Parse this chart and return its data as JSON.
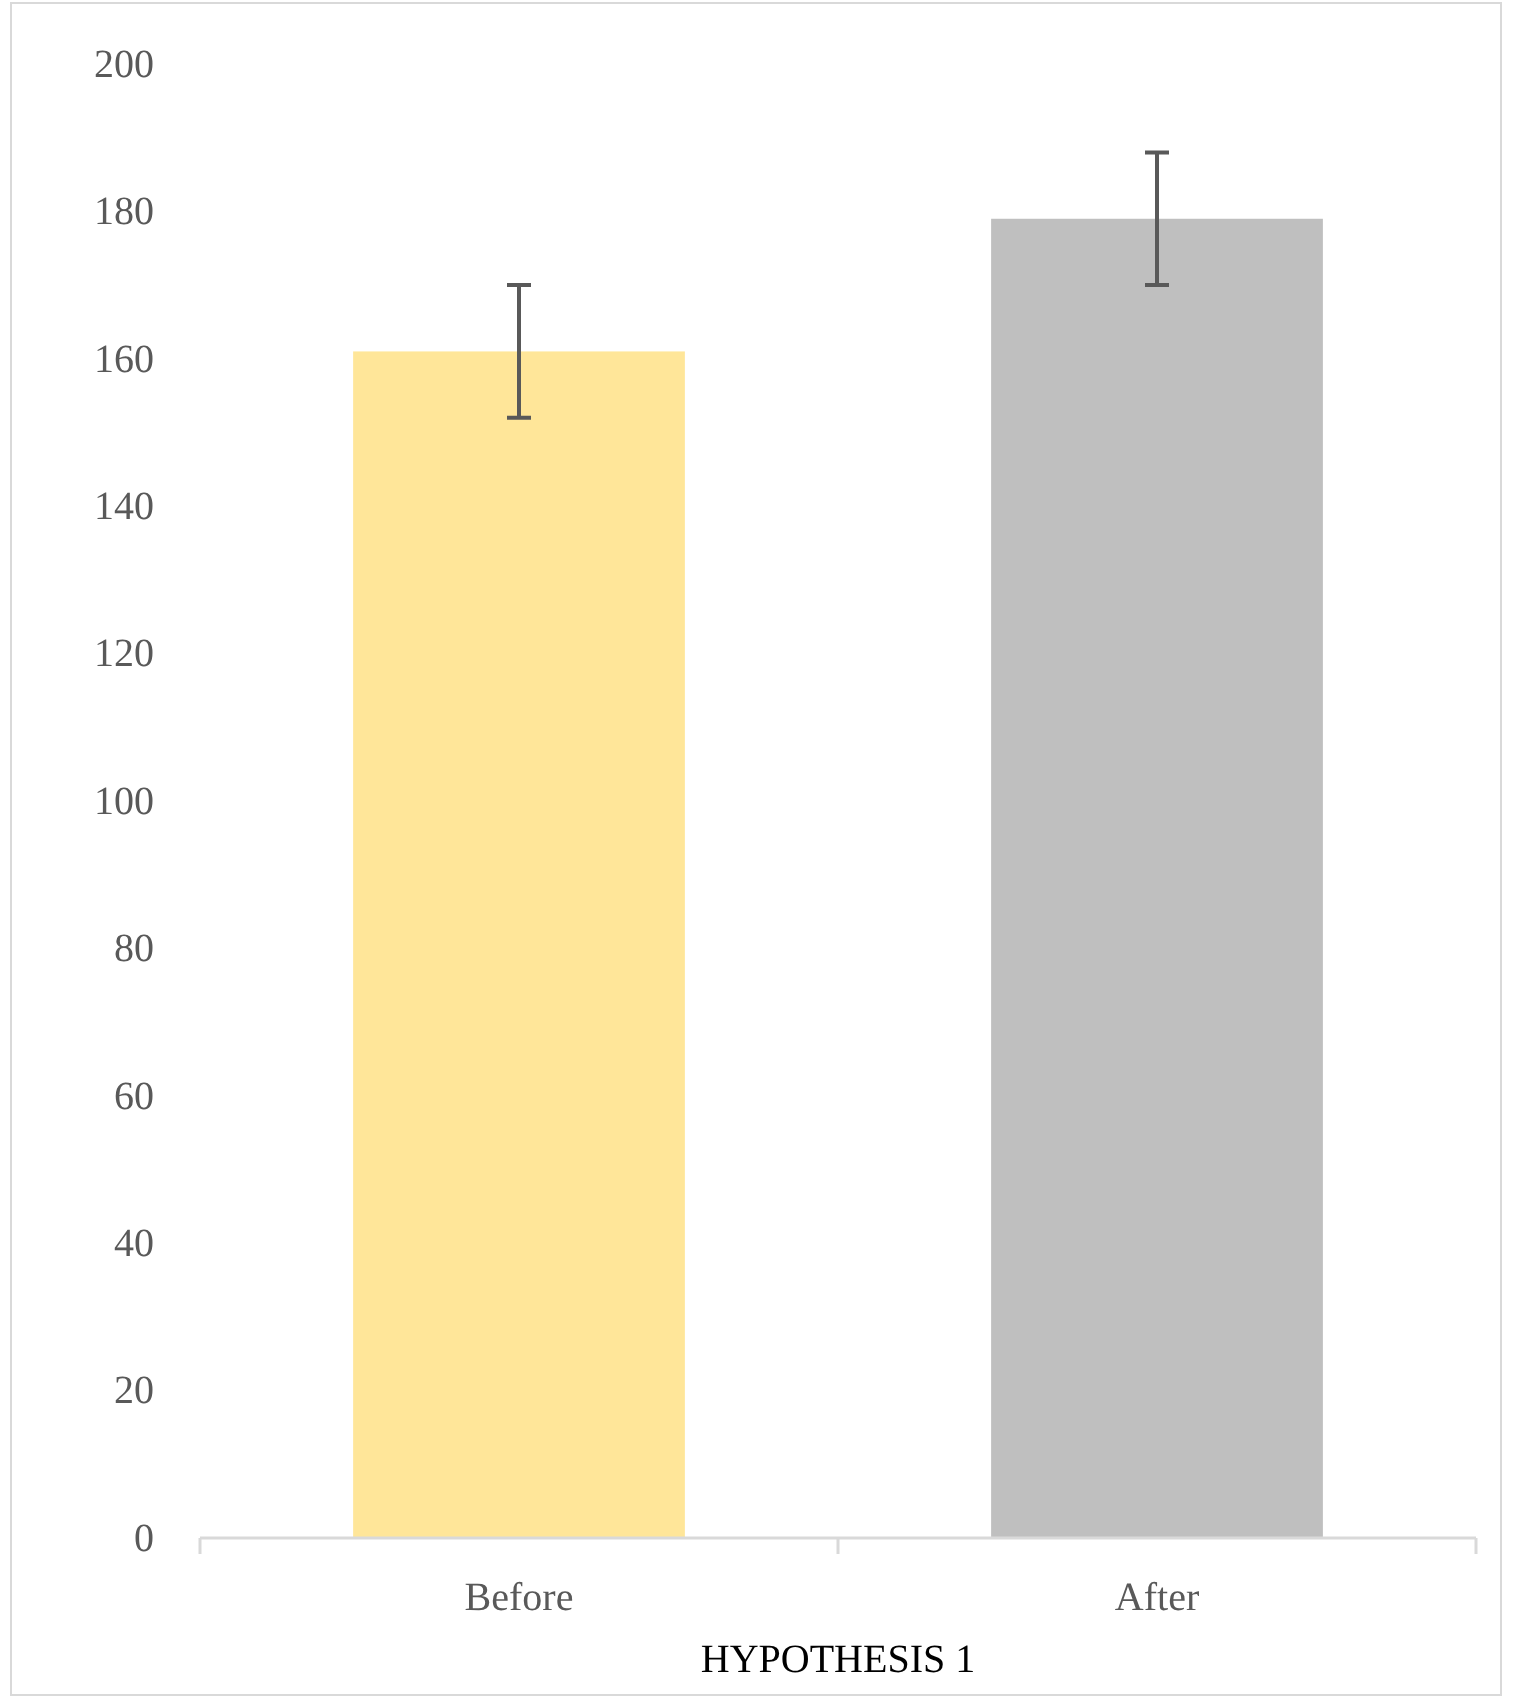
{
  "chart_data": {
    "type": "bar",
    "xlabel": "HYPOTHESIS 1",
    "categories": [
      "Before",
      "After"
    ],
    "values": [
      161,
      179
    ],
    "errors": [
      9,
      9
    ],
    "colors": [
      "#ffe699",
      "#bfbfbf"
    ],
    "ylim": [
      0,
      200
    ],
    "yticks": [
      0,
      20,
      40,
      60,
      80,
      100,
      120,
      140,
      160,
      180,
      200
    ],
    "grid": false
  }
}
